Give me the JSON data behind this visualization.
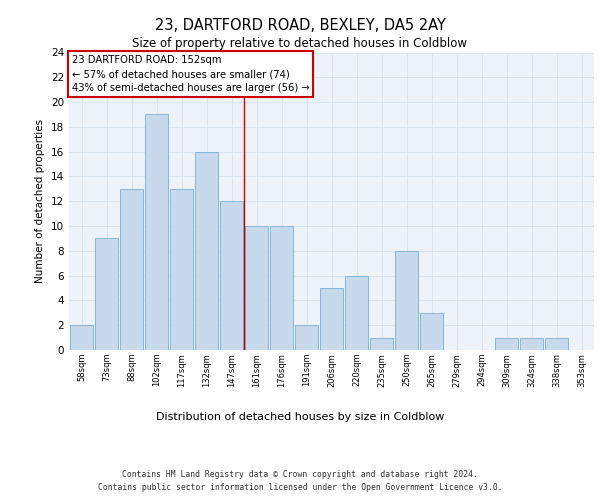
{
  "title1": "23, DARTFORD ROAD, BEXLEY, DA5 2AY",
  "title2": "Size of property relative to detached houses in Coldblow",
  "xlabel": "Distribution of detached houses by size in Coldblow",
  "ylabel": "Number of detached properties",
  "categories": [
    "58sqm",
    "73sqm",
    "88sqm",
    "102sqm",
    "117sqm",
    "132sqm",
    "147sqm",
    "161sqm",
    "176sqm",
    "191sqm",
    "206sqm",
    "220sqm",
    "235sqm",
    "250sqm",
    "265sqm",
    "279sqm",
    "294sqm",
    "309sqm",
    "324sqm",
    "338sqm",
    "353sqm"
  ],
  "values": [
    2,
    9,
    13,
    19,
    13,
    16,
    12,
    10,
    10,
    2,
    5,
    6,
    1,
    8,
    3,
    0,
    0,
    1,
    1,
    1,
    0
  ],
  "bar_color": "#c7d9ed",
  "bar_edge_color": "#7bafd4",
  "grid_color": "#d8e4f0",
  "annotation_text": "23 DARTFORD ROAD: 152sqm\n← 57% of detached houses are smaller (74)\n43% of semi-detached houses are larger (56) →",
  "annotation_box_color": "#ffffff",
  "annotation_box_edge": "#cc0000",
  "vline_x_index": 6.5,
  "vline_color": "#cc0000",
  "ylim": [
    0,
    24
  ],
  "yticks": [
    0,
    2,
    4,
    6,
    8,
    10,
    12,
    14,
    16,
    18,
    20,
    22,
    24
  ],
  "footer1": "Contains HM Land Registry data © Crown copyright and database right 2024.",
  "footer2": "Contains public sector information licensed under the Open Government Licence v3.0.",
  "bg_color": "#eef2f9"
}
